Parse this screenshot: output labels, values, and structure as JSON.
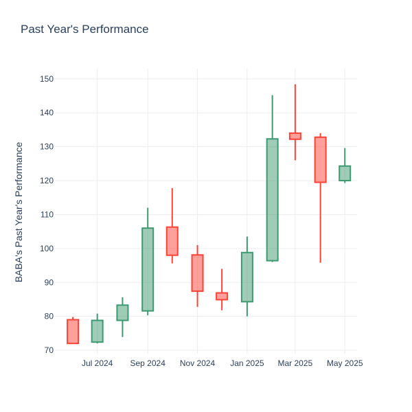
{
  "chart_data": {
    "type": "candlestick",
    "title": "Past Year's Performance",
    "xlabel": "",
    "ylabel": "BABA's Past Year's Performance",
    "ylim": [
      69,
      153
    ],
    "yticks": [
      70,
      80,
      90,
      100,
      110,
      120,
      130,
      140,
      150
    ],
    "xticks": [
      {
        "label": "Jul 2024",
        "date": "2024-07-01"
      },
      {
        "label": "Sep 2024",
        "date": "2024-09-01"
      },
      {
        "label": "Nov 2024",
        "date": "2024-11-01"
      },
      {
        "label": "Jan 2025",
        "date": "2025-01-01"
      },
      {
        "label": "Mar 2025",
        "date": "2025-03-01"
      },
      {
        "label": "May 2025",
        "date": "2025-05-01"
      }
    ],
    "xlim": [
      "2024-05-10",
      "2025-05-16"
    ],
    "grid": true,
    "colors": {
      "increasing": "#3d9970",
      "decreasing": "#ff4136"
    },
    "candles": [
      {
        "date": "2024-06-01",
        "open": 79.0,
        "high": 79.8,
        "low": 72.0,
        "close": 72.0
      },
      {
        "date": "2024-07-01",
        "open": 72.4,
        "high": 80.8,
        "low": 72.0,
        "close": 78.8
      },
      {
        "date": "2024-08-01",
        "open": 78.8,
        "high": 85.6,
        "low": 73.9,
        "close": 83.3
      },
      {
        "date": "2024-09-01",
        "open": 81.6,
        "high": 112.0,
        "low": 80.3,
        "close": 106.0
      },
      {
        "date": "2024-10-01",
        "open": 106.3,
        "high": 117.8,
        "low": 95.6,
        "close": 98.0
      },
      {
        "date": "2024-11-01",
        "open": 98.1,
        "high": 101.0,
        "low": 82.8,
        "close": 87.4
      },
      {
        "date": "2024-12-01",
        "open": 86.9,
        "high": 94.0,
        "low": 81.8,
        "close": 84.9
      },
      {
        "date": "2025-01-01",
        "open": 84.3,
        "high": 103.5,
        "low": 80.0,
        "close": 98.8
      },
      {
        "date": "2025-02-01",
        "open": 96.4,
        "high": 145.2,
        "low": 96.0,
        "close": 132.3
      },
      {
        "date": "2025-03-01",
        "open": 134.0,
        "high": 148.4,
        "low": 126.0,
        "close": 132.2
      },
      {
        "date": "2025-04-01",
        "open": 132.8,
        "high": 134.0,
        "low": 95.8,
        "close": 119.5
      },
      {
        "date": "2025-05-01",
        "open": 120.0,
        "high": 129.6,
        "low": 119.3,
        "close": 124.3
      }
    ]
  }
}
